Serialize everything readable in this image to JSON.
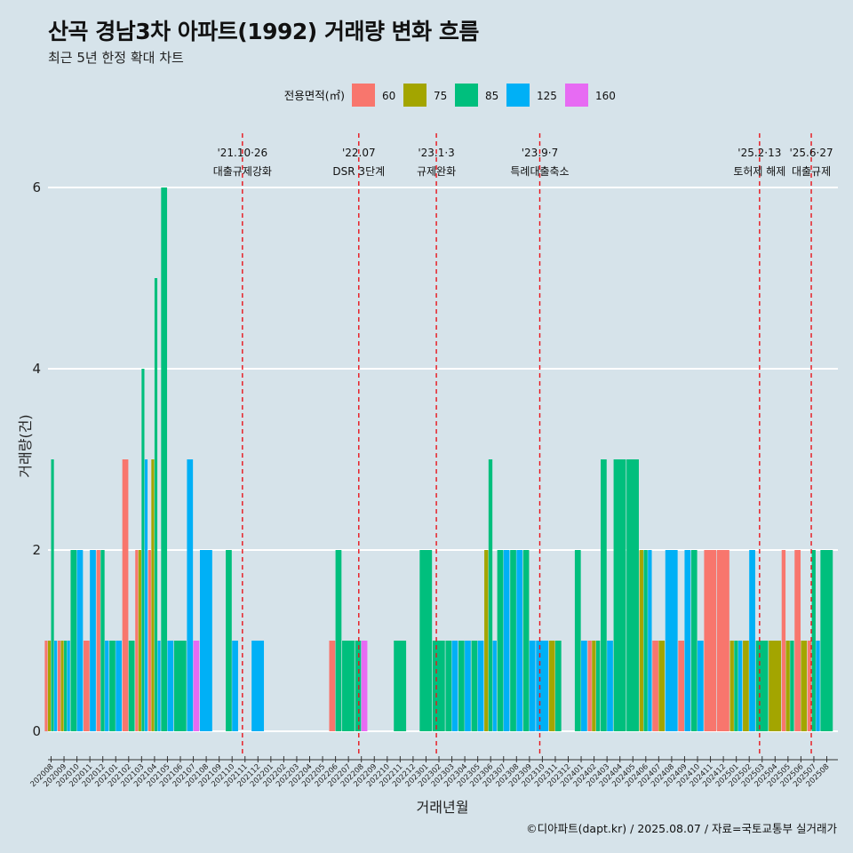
{
  "header": {
    "title": "산곡 경남3차 아파트(1992) 거래량 변화 흐름",
    "subtitle": "최근 5년 한정 확대 차트"
  },
  "footer": {
    "caption": "©디아파트(dapt.kr) / 2025.08.07 / 자료=국토교통부 실거래가"
  },
  "chart_data": {
    "type": "bar",
    "xlabel": "거래년월",
    "ylabel": "거래량(건)",
    "ylim": [
      0,
      6.5
    ],
    "yticks": [
      0,
      2,
      4,
      6
    ],
    "grid": true,
    "legend": {
      "title": "전용면적(㎡)",
      "position": "top",
      "entries": [
        {
          "name": "60",
          "color": "#f8766d"
        },
        {
          "name": "75",
          "color": "#a3a500"
        },
        {
          "name": "85",
          "color": "#00bf7d"
        },
        {
          "name": "125",
          "color": "#00b0f6"
        },
        {
          "name": "160",
          "color": "#e76bf3"
        }
      ]
    },
    "months": [
      "202008",
      "202009",
      "202010",
      "202011",
      "202012",
      "202101",
      "202102",
      "202103",
      "202104",
      "202105",
      "202106",
      "202107",
      "202108",
      "202109",
      "202110",
      "202111",
      "202112",
      "202201",
      "202202",
      "202203",
      "202204",
      "202205",
      "202206",
      "202207",
      "202208",
      "202209",
      "202210",
      "202211",
      "202212",
      "202301",
      "202302",
      "202303",
      "202304",
      "202305",
      "202306",
      "202307",
      "202308",
      "202309",
      "202310",
      "202311",
      "202312",
      "202401",
      "202402",
      "202403",
      "202404",
      "202405",
      "202406",
      "202407",
      "202408",
      "202409",
      "202410",
      "202411",
      "202412",
      "202501",
      "202502",
      "202503",
      "202504",
      "202505",
      "202506",
      "202507",
      "202508"
    ],
    "series": [
      {
        "name": "60",
        "values": [
          1,
          1,
          0,
          1,
          2,
          0,
          3,
          2,
          2,
          0,
          0,
          0,
          0,
          0,
          0,
          0,
          0,
          0,
          0,
          0,
          0,
          0,
          1,
          0,
          0,
          0,
          0,
          0,
          0,
          0,
          0,
          0,
          0,
          0,
          0,
          0,
          0,
          0,
          0,
          0,
          0,
          0,
          1,
          0,
          0,
          0,
          0,
          1,
          0,
          1,
          0,
          2,
          2,
          0,
          0,
          0,
          0,
          2,
          2,
          1,
          0
        ]
      },
      {
        "name": "75",
        "values": [
          1,
          1,
          0,
          0,
          0,
          0,
          0,
          2,
          3,
          0,
          0,
          0,
          0,
          0,
          0,
          0,
          0,
          0,
          0,
          0,
          0,
          0,
          0,
          0,
          0,
          0,
          0,
          0,
          0,
          0,
          0,
          0,
          0,
          0,
          2,
          0,
          0,
          0,
          0,
          1,
          0,
          0,
          1,
          0,
          0,
          0,
          2,
          1,
          0,
          0,
          0,
          0,
          0,
          1,
          1,
          0,
          1,
          1,
          1,
          0,
          0
        ]
      },
      {
        "name": "85",
        "values": [
          3,
          1,
          2,
          0,
          2,
          1,
          1,
          4,
          5,
          6,
          1,
          0,
          0,
          0,
          2,
          0,
          0,
          0,
          0,
          0,
          0,
          0,
          2,
          1,
          1,
          0,
          0,
          1,
          0,
          2,
          1,
          1,
          1,
          1,
          3,
          2,
          2,
          2,
          0,
          1,
          0,
          2,
          1,
          3,
          3,
          3,
          2,
          0,
          0,
          0,
          2,
          0,
          0,
          1,
          0,
          1,
          0,
          1,
          0,
          2,
          2
        ]
      },
      {
        "name": "125",
        "values": [
          1,
          1,
          2,
          2,
          1,
          1,
          0,
          3,
          1,
          1,
          0,
          3,
          2,
          0,
          1,
          0,
          1,
          0,
          0,
          0,
          0,
          0,
          0,
          0,
          0,
          0,
          0,
          0,
          0,
          0,
          0,
          1,
          1,
          1,
          1,
          2,
          2,
          1,
          1,
          0,
          0,
          1,
          0,
          1,
          0,
          0,
          2,
          0,
          2,
          2,
          1,
          0,
          0,
          1,
          2,
          0,
          0,
          0,
          0,
          1,
          0
        ]
      },
      {
        "name": "160",
        "values": [
          0,
          0,
          0,
          0,
          0,
          0,
          0,
          0,
          0,
          0,
          0,
          1,
          0,
          0,
          0,
          0,
          0,
          0,
          0,
          0,
          0,
          0,
          0,
          0,
          1,
          0,
          0,
          0,
          0,
          0,
          0,
          0,
          0,
          0,
          0,
          0,
          0,
          0,
          0,
          0,
          0,
          0,
          0,
          0,
          0,
          0,
          0,
          0,
          0,
          0,
          0,
          0,
          0,
          0,
          0,
          0,
          0,
          0,
          0,
          0,
          0
        ]
      }
    ],
    "events": [
      {
        "date": "'21.10·26",
        "label": "대출규제강화",
        "month_index": 14.8
      },
      {
        "date": "'22.07",
        "label": "DSR 3단계",
        "month_index": 23.8
      },
      {
        "date": "'23.1·3",
        "label": "규제완화",
        "month_index": 29.8
      },
      {
        "date": "'23.9·7",
        "label": "특례대출축소",
        "month_index": 37.8
      },
      {
        "date": "'25.2·13",
        "label": "토허제 해제",
        "month_index": 54.8
      },
      {
        "date": "'25.6·27",
        "label": "대출규제",
        "month_index": 58.8
      }
    ]
  }
}
